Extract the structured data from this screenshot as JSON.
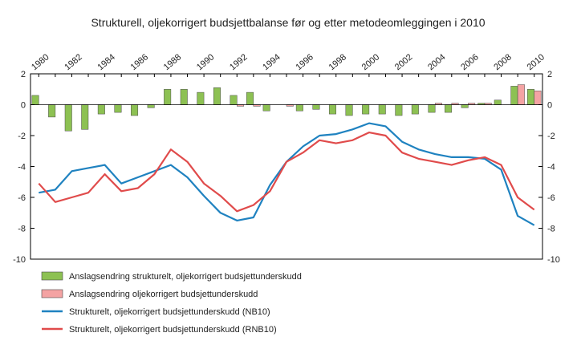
{
  "chart_data": {
    "type": "bar+line",
    "title": "Strukturell, oljekorrigert budsjettbalanse før og etter metodeomleggingen i 2010",
    "x": [
      1980,
      1981,
      1982,
      1983,
      1984,
      1985,
      1986,
      1987,
      1988,
      1989,
      1990,
      1991,
      1992,
      1993,
      1994,
      1995,
      1996,
      1997,
      1998,
      1999,
      2000,
      2001,
      2002,
      2003,
      2004,
      2005,
      2006,
      2007,
      2008,
      2009,
      2010
    ],
    "x_tick_labels": [
      "1980",
      "1982",
      "1984",
      "1986",
      "1988",
      "1990",
      "1992",
      "1994",
      "1996",
      "1998",
      "2000",
      "2002",
      "2004",
      "2006",
      "2008",
      "2010"
    ],
    "ylim": [
      -10,
      2
    ],
    "y_ticks": [
      "2",
      "0",
      "-2",
      "-4",
      "-6",
      "-8",
      "-10"
    ],
    "bar_series": [
      {
        "name": "Anslagsendring strukturelt, oljekorrigert budsjettunderskudd",
        "color": "#8dc153",
        "values": [
          0.6,
          -0.8,
          -1.7,
          -1.6,
          -0.6,
          -0.5,
          -0.7,
          -0.2,
          1.0,
          1.0,
          0.8,
          1.1,
          0.6,
          0.8,
          -0.4,
          0.0,
          -0.4,
          -0.3,
          -0.6,
          -0.7,
          -0.6,
          -0.6,
          -0.7,
          -0.6,
          -0.5,
          -0.5,
          -0.2,
          0.1,
          0.3,
          1.2,
          1.0
        ]
      },
      {
        "name": "Anslagsendring oljekorrigert budsjettunderskudd",
        "color": "#f4a3a3",
        "values": [
          0,
          0,
          0,
          0,
          0,
          0,
          0,
          0,
          0,
          0,
          0,
          0,
          -0.1,
          -0.1,
          0,
          -0.1,
          0,
          0,
          0,
          0,
          0,
          0,
          0,
          0,
          0.1,
          0.1,
          0.1,
          0.1,
          0,
          1.3,
          0.9
        ]
      }
    ],
    "line_series": [
      {
        "name": "Strukturelt, oljekorrigert budsjettunderskudd (NB10)",
        "color": "#1f82c0",
        "values": [
          -5.7,
          -5.5,
          -4.3,
          -4.1,
          -3.9,
          -5.1,
          -4.7,
          -4.3,
          -3.9,
          -4.7,
          -5.9,
          -7.0,
          -7.5,
          -7.3,
          -5.2,
          -3.7,
          -2.7,
          -2.0,
          -1.9,
          -1.6,
          -1.2,
          -1.4,
          -2.4,
          -2.9,
          -3.2,
          -3.4,
          -3.4,
          -3.5,
          -4.2,
          -7.2,
          -7.8
        ]
      },
      {
        "name": "Strukturelt, oljekorrigert budsjettunderskudd (RNB10)",
        "color": "#e04b4b",
        "values": [
          -5.1,
          -6.3,
          -6.0,
          -5.7,
          -4.5,
          -5.6,
          -5.4,
          -4.5,
          -2.9,
          -3.7,
          -5.1,
          -5.9,
          -6.9,
          -6.5,
          -5.6,
          -3.7,
          -3.1,
          -2.3,
          -2.5,
          -2.3,
          -1.8,
          -2.0,
          -3.1,
          -3.5,
          -3.7,
          -3.9,
          -3.6,
          -3.4,
          -3.9,
          -6.0,
          -6.8
        ]
      }
    ],
    "grid": false,
    "legend_position": "bottom-left"
  }
}
